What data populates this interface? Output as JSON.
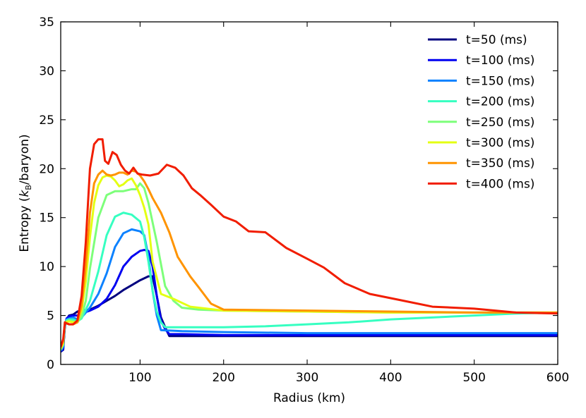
{
  "chart_data": {
    "type": "line",
    "title": "",
    "xlabel": "Radius (km)",
    "ylabel_prefix": "Entropy (",
    "ylabel_k": "k",
    "ylabel_sub": "B",
    "ylabel_suffix": "/baryon)",
    "xlim": [
      5,
      600
    ],
    "ylim": [
      0,
      35
    ],
    "xticks": [
      100,
      200,
      300,
      400,
      500,
      600
    ],
    "yticks": [
      0,
      5,
      10,
      15,
      20,
      25,
      30,
      35
    ],
    "legend_position": "top-right",
    "grid": false,
    "series": [
      {
        "name": "t=50 (ms)",
        "color": "#00007f",
        "x": [
          5,
          8,
          10,
          12,
          15,
          20,
          25,
          30,
          40,
          50,
          60,
          70,
          80,
          90,
          100,
          110,
          115,
          120,
          125,
          130,
          135,
          150,
          200,
          300,
          400,
          500,
          600
        ],
        "y": [
          1.3,
          1.5,
          3.9,
          4.6,
          5.0,
          5.1,
          5.4,
          5.5,
          5.6,
          6.0,
          6.5,
          7.0,
          7.6,
          8.1,
          8.6,
          9.0,
          9.0,
          7.0,
          4.8,
          3.8,
          2.9,
          2.9,
          2.9,
          2.9,
          2.9,
          2.9,
          2.9
        ]
      },
      {
        "name": "t=100 (ms)",
        "color": "#0000f1",
        "x": [
          5,
          8,
          10,
          12,
          15,
          20,
          25,
          30,
          40,
          50,
          60,
          70,
          80,
          90,
          100,
          105,
          110,
          115,
          120,
          125,
          130,
          135,
          150,
          200,
          300,
          400,
          500,
          600
        ],
        "y": [
          1.3,
          1.6,
          4.0,
          4.7,
          4.9,
          5.0,
          5.0,
          5.2,
          5.5,
          5.9,
          6.7,
          8.1,
          10.0,
          11.0,
          11.6,
          11.7,
          11.6,
          10.0,
          7.0,
          4.5,
          3.6,
          3.1,
          3.1,
          3.0,
          3.0,
          3.0,
          3.0,
          3.0
        ]
      },
      {
        "name": "t=150 (ms)",
        "color": "#0d82ff",
        "x": [
          5,
          8,
          10,
          12,
          15,
          20,
          25,
          30,
          40,
          50,
          60,
          70,
          80,
          90,
          100,
          105,
          110,
          115,
          120,
          125,
          150,
          200,
          300,
          400,
          500,
          600
        ],
        "y": [
          1.4,
          1.8,
          4.1,
          4.6,
          4.7,
          4.8,
          4.6,
          4.8,
          5.8,
          7.2,
          9.3,
          12.0,
          13.4,
          13.8,
          13.6,
          13.2,
          11.0,
          7.5,
          5.0,
          3.5,
          3.4,
          3.3,
          3.2,
          3.2,
          3.2,
          3.2
        ]
      },
      {
        "name": "t=200 (ms)",
        "color": "#36ffc1",
        "x": [
          5,
          8,
          10,
          12,
          15,
          20,
          25,
          30,
          40,
          50,
          60,
          70,
          80,
          90,
          100,
          105,
          110,
          115,
          120,
          125,
          130,
          150,
          200,
          250,
          300,
          350,
          400,
          450,
          500,
          550,
          600
        ],
        "y": [
          1.5,
          2.0,
          4.2,
          4.5,
          4.6,
          4.6,
          4.4,
          4.7,
          6.5,
          9.5,
          13.2,
          15.1,
          15.5,
          15.3,
          14.6,
          13.0,
          10.5,
          7.5,
          5.4,
          4.3,
          3.8,
          3.8,
          3.8,
          3.9,
          4.1,
          4.3,
          4.6,
          4.8,
          5.0,
          5.2,
          5.3
        ]
      },
      {
        "name": "t=250 (ms)",
        "color": "#7dff7a",
        "x": [
          5,
          8,
          10,
          12,
          15,
          20,
          25,
          30,
          35,
          40,
          50,
          60,
          70,
          80,
          90,
          95,
          100,
          105,
          110,
          120,
          130,
          140,
          150,
          170,
          200,
          300,
          400,
          500,
          600
        ],
        "y": [
          1.5,
          2.1,
          4.2,
          4.4,
          4.5,
          4.4,
          4.3,
          4.9,
          6.5,
          9.8,
          15.0,
          17.3,
          17.7,
          17.7,
          17.9,
          17.9,
          18.5,
          18.0,
          16.5,
          12.5,
          8.0,
          6.5,
          5.8,
          5.6,
          5.5,
          5.4,
          5.3,
          5.3,
          5.3
        ]
      },
      {
        "name": "t=300 (ms)",
        "color": "#e4ff13",
        "x": [
          5,
          8,
          10,
          12,
          15,
          20,
          25,
          30,
          35,
          40,
          45,
          50,
          55,
          60,
          65,
          70,
          75,
          80,
          85,
          90,
          95,
          100,
          105,
          110,
          115,
          125,
          140,
          160,
          200,
          300,
          400,
          500,
          600
        ],
        "y": [
          1.6,
          2.2,
          4.3,
          4.3,
          4.4,
          4.3,
          4.4,
          5.5,
          8.5,
          13.0,
          16.5,
          18.3,
          19.1,
          19.3,
          19.2,
          18.8,
          18.2,
          18.4,
          18.8,
          19.0,
          18.3,
          17.3,
          16.0,
          14.3,
          10.5,
          7.2,
          6.7,
          5.9,
          5.5,
          5.4,
          5.3,
          5.3,
          5.3
        ]
      },
      {
        "name": "t=350 (ms)",
        "color": "#ff9400",
        "x": [
          5,
          8,
          10,
          12,
          15,
          20,
          25,
          30,
          35,
          40,
          45,
          50,
          55,
          60,
          65,
          70,
          75,
          80,
          85,
          90,
          95,
          100,
          105,
          110,
          115,
          125,
          135,
          145,
          160,
          170,
          185,
          200,
          300,
          400,
          500,
          600
        ],
        "y": [
          1.7,
          2.4,
          4.3,
          4.2,
          4.1,
          4.1,
          4.3,
          6.0,
          10.0,
          15.5,
          18.5,
          19.4,
          19.8,
          19.4,
          19.3,
          19.4,
          19.6,
          19.6,
          19.4,
          19.8,
          19.7,
          19.3,
          18.7,
          17.9,
          17.0,
          15.5,
          13.5,
          11.0,
          9.0,
          7.9,
          6.2,
          5.6,
          5.5,
          5.4,
          5.3,
          5.3
        ]
      },
      {
        "name": "t=400 (ms)",
        "color": "#f11d00",
        "x": [
          5,
          8,
          10,
          12,
          15,
          20,
          25,
          30,
          35,
          40,
          45,
          50,
          55,
          58,
          62,
          67,
          72,
          77,
          82,
          87,
          92,
          97,
          102,
          112,
          122,
          132,
          142,
          152,
          162,
          172,
          185,
          200,
          215,
          230,
          250,
          275,
          300,
          320,
          345,
          375,
          410,
          450,
          500,
          550,
          600
        ],
        "y": [
          1.8,
          2.6,
          4.3,
          4.2,
          4.1,
          4.1,
          4.5,
          7.0,
          12.5,
          20.0,
          22.5,
          23.0,
          23.0,
          20.8,
          20.5,
          21.7,
          21.4,
          20.4,
          19.8,
          19.5,
          20.1,
          19.5,
          19.4,
          19.3,
          19.5,
          20.4,
          20.1,
          19.3,
          18.0,
          17.3,
          16.3,
          15.1,
          14.6,
          13.6,
          13.5,
          11.9,
          10.8,
          9.9,
          8.3,
          7.2,
          6.6,
          5.9,
          5.7,
          5.3,
          5.2
        ]
      }
    ]
  }
}
